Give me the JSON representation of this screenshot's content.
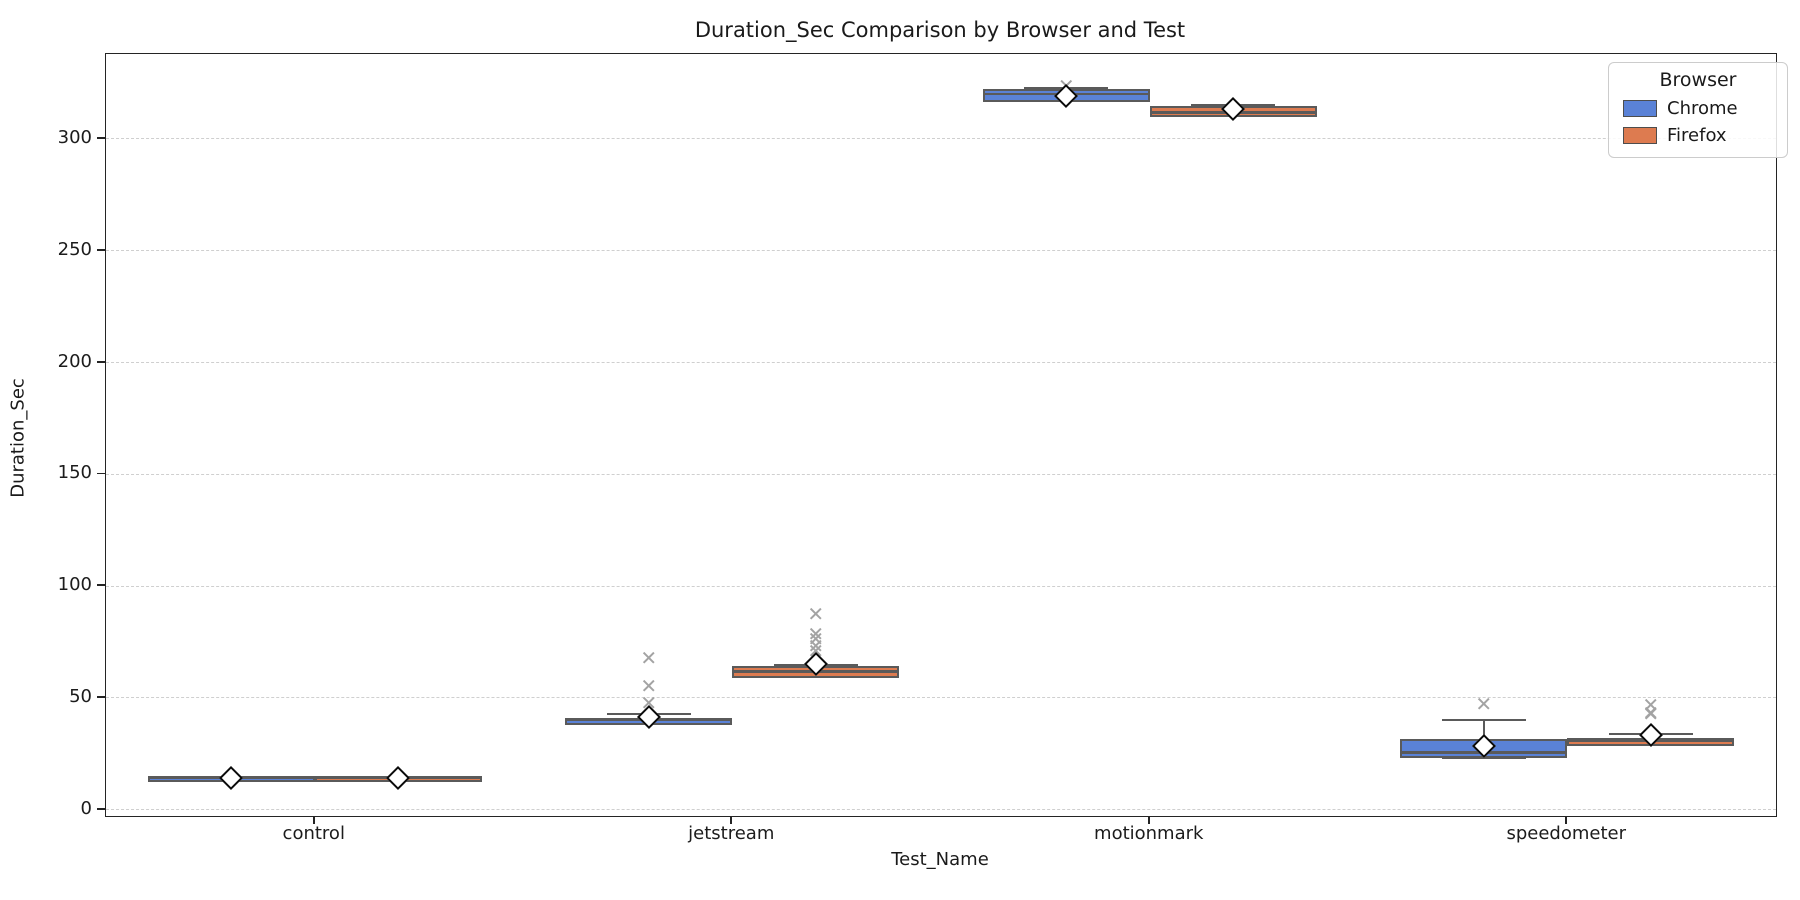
{
  "title": "Duration_Sec Comparison by Browser and Test",
  "axes": {
    "xlabel": "Test_Name",
    "ylabel": "Duration_Sec",
    "yticks": [
      0,
      50,
      100,
      150,
      200,
      250,
      300
    ],
    "categories": [
      "control",
      "jetstream",
      "motionmark",
      "speedometer"
    ]
  },
  "legend": {
    "title": "Browser",
    "entries": [
      {
        "label": "Chrome",
        "color": "#5a82d7"
      },
      {
        "label": "Firefox",
        "color": "#dd7b50"
      }
    ]
  },
  "chart_data": {
    "type": "boxplot",
    "title": "Duration_Sec Comparison by Browser and Test",
    "xlabel": "Test_Name",
    "ylabel": "Duration_Sec",
    "categories": [
      "control",
      "jetstream",
      "motionmark",
      "speedometer"
    ],
    "ylim": [
      -3,
      338
    ],
    "yticks": [
      0,
      50,
      100,
      150,
      200,
      250,
      300
    ],
    "grid": "horizontal-dashed",
    "legend_position": "upper-right",
    "mean_marker": "white-diamond",
    "outlier_marker": "gray-x",
    "series": [
      {
        "name": "Chrome",
        "color": "#5a82d7",
        "boxes": [
          {
            "category": "control",
            "whislo": 14.1,
            "q1": 14.3,
            "med": 14.4,
            "q3": 14.6,
            "whishi": 14.8,
            "mean": 14.5,
            "fliers": []
          },
          {
            "category": "jetstream",
            "whislo": 39.2,
            "q1": 39.4,
            "med": 40.2,
            "q3": 41.1,
            "whishi": 43.0,
            "mean": 41.6,
            "fliers": [
              48.0,
              55.5,
              68.0
            ]
          },
          {
            "category": "motionmark",
            "whislo": 317.4,
            "q1": 317.9,
            "med": 320.2,
            "q3": 322.3,
            "whishi": 322.6,
            "mean": 319.3,
            "fliers": [
              323.5
            ]
          },
          {
            "category": "speedometer",
            "whislo": 23.3,
            "q1": 25.0,
            "med": 25.8,
            "q3": 31.8,
            "whishi": 40.2,
            "mean": 28.6,
            "fliers": [
              47.4
            ]
          }
        ]
      },
      {
        "name": "Firefox",
        "color": "#dd7b50",
        "boxes": [
          {
            "category": "control",
            "whislo": 14.1,
            "q1": 14.3,
            "med": 14.4,
            "q3": 14.6,
            "whishi": 14.8,
            "mean": 14.5,
            "fliers": []
          },
          {
            "category": "jetstream",
            "whislo": 60.4,
            "q1": 60.8,
            "med": 62.0,
            "q3": 64.4,
            "whishi": 64.8,
            "mean": 65.4,
            "fliers": [
              71.0,
              73.3,
              76.4,
              78.7,
              87.6
            ]
          },
          {
            "category": "motionmark",
            "whislo": 310.5,
            "q1": 311.2,
            "med": 311.8,
            "q3": 314.8,
            "whishi": 315.0,
            "mean": 313.3,
            "fliers": []
          },
          {
            "category": "speedometer",
            "whislo": 29.8,
            "q1": 30.0,
            "med": 31.0,
            "q3": 32.2,
            "whishi": 34.0,
            "mean": 33.5,
            "fliers": [
              42.8,
              43.4,
              47.0
            ]
          }
        ]
      }
    ],
    "style": {
      "box_edge": "#5a5a5a",
      "flier_color": "#a3a3a3",
      "grid_color": "#cfcfcf",
      "mean_fill": "#ffffff",
      "mean_edge": "#0a0a0a"
    }
  }
}
